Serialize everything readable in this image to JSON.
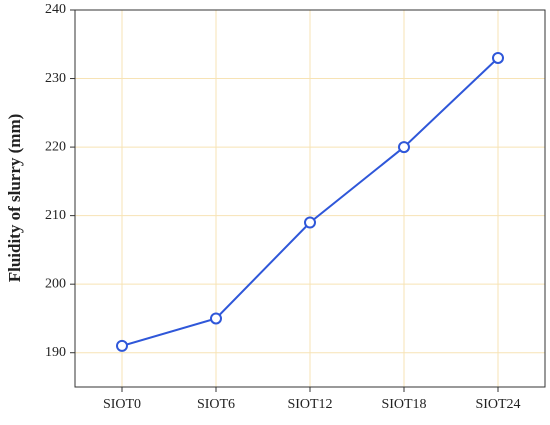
{
  "chart_data": {
    "type": "line",
    "y_label": "Fluidity of slurry (mm)",
    "categories": [
      "SIOT0",
      "SIOT6",
      "SIOT12",
      "SIOT18",
      "SIOT24"
    ],
    "series": [
      {
        "color": "#2f57d9",
        "values": [
          191,
          195,
          209,
          220,
          233
        ]
      }
    ],
    "ylim": [
      185,
      240
    ],
    "yticks": [
      190,
      200,
      210,
      220,
      230,
      240
    ],
    "grid": true,
    "grid_color": "#f7e3b5"
  }
}
